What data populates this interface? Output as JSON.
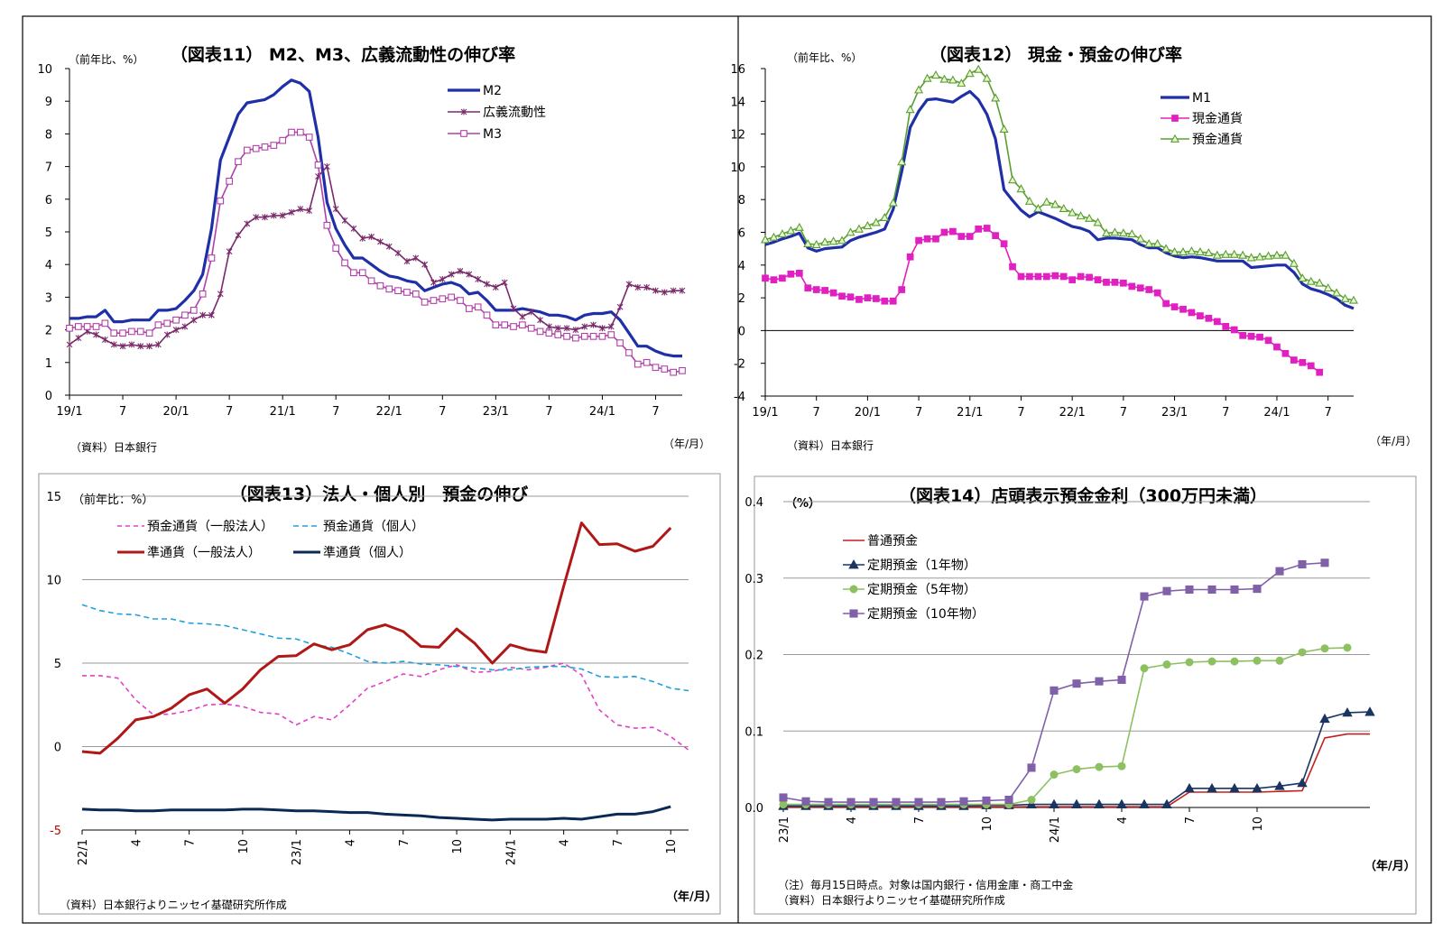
{
  "chart_data": [
    {
      "type": "line",
      "title": "（図表11） M2、M3、広義流動性の伸び率",
      "ylabel": "（前年比、%）",
      "xunit": "（年/月）",
      "source": "（資料）日本銀行",
      "ylim": [
        0,
        10
      ],
      "yticks": [
        0,
        1,
        2,
        3,
        4,
        5,
        6,
        7,
        8,
        9,
        10
      ],
      "xticklabels": [
        "19/1",
        "7",
        "20/1",
        "7",
        "21/1",
        "7",
        "22/1",
        "7",
        "23/1",
        "7",
        "24/1",
        "7"
      ],
      "legend_position": "top-right",
      "grid": false,
      "series": [
        {
          "name": "M2",
          "color": "#1f2fa8",
          "marker": "none",
          "values": [
            2.35,
            2.35,
            2.4,
            2.4,
            2.6,
            2.25,
            2.25,
            2.3,
            2.3,
            2.3,
            2.6,
            2.6,
            2.65,
            2.9,
            3.2,
            3.7,
            5.1,
            7.2,
            7.9,
            8.6,
            8.95,
            9.0,
            9.05,
            9.2,
            9.45,
            9.65,
            9.55,
            9.3,
            7.9,
            5.9,
            5.1,
            4.6,
            4.2,
            4.2,
            4.0,
            3.8,
            3.65,
            3.6,
            3.5,
            3.45,
            3.2,
            3.3,
            3.4,
            3.45,
            3.35,
            3.1,
            3.15,
            2.9,
            2.6,
            2.6,
            2.6,
            2.65,
            2.6,
            2.55,
            2.45,
            2.45,
            2.4,
            2.3,
            2.45,
            2.5,
            2.5,
            2.55,
            2.3,
            1.9,
            1.5,
            1.5,
            1.35,
            1.25,
            1.2,
            1.2
          ]
        },
        {
          "name": "広義流動性",
          "color": "#7a2a6a",
          "marker": "x",
          "values": [
            1.55,
            1.75,
            1.95,
            1.85,
            1.7,
            1.55,
            1.5,
            1.55,
            1.5,
            1.5,
            1.55,
            1.85,
            2.0,
            2.1,
            2.3,
            2.45,
            2.45,
            3.1,
            4.4,
            4.9,
            5.25,
            5.45,
            5.45,
            5.5,
            5.5,
            5.6,
            5.7,
            5.65,
            6.7,
            7.0,
            5.7,
            5.35,
            5.1,
            4.8,
            4.85,
            4.7,
            4.55,
            4.35,
            4.1,
            4.2,
            4.0,
            3.45,
            3.55,
            3.7,
            3.8,
            3.7,
            3.55,
            3.4,
            3.3,
            3.45,
            2.65,
            2.4,
            2.55,
            2.3,
            2.1,
            2.05,
            2.05,
            2.0,
            2.1,
            2.15,
            2.05,
            2.1,
            2.7,
            3.4,
            3.3,
            3.3,
            3.2,
            3.15,
            3.2,
            3.2
          ]
        },
        {
          "name": "M3",
          "color": "#b040a8",
          "marker": "square",
          "values": [
            2.05,
            2.1,
            2.1,
            2.1,
            2.2,
            1.9,
            1.9,
            1.95,
            1.95,
            1.9,
            2.15,
            2.2,
            2.3,
            2.45,
            2.6,
            3.1,
            4.2,
            5.95,
            6.55,
            7.15,
            7.5,
            7.55,
            7.6,
            7.65,
            7.8,
            8.05,
            8.05,
            7.9,
            7.05,
            5.2,
            4.5,
            4.05,
            3.75,
            3.75,
            3.5,
            3.35,
            3.25,
            3.2,
            3.15,
            3.1,
            2.85,
            2.9,
            2.95,
            3.0,
            2.9,
            2.65,
            2.7,
            2.45,
            2.15,
            2.15,
            2.1,
            2.15,
            2.05,
            1.95,
            1.9,
            1.85,
            1.8,
            1.75,
            1.8,
            1.8,
            1.8,
            1.85,
            1.6,
            1.3,
            0.95,
            1.0,
            0.85,
            0.8,
            0.7,
            0.75
          ]
        }
      ]
    },
    {
      "type": "line",
      "title": "（図表12） 現金・預金の伸び率",
      "ylabel": "（前年比、%）",
      "xunit": "（年/月）",
      "source": "（資料）日本銀行",
      "ylim": [
        -4,
        16
      ],
      "yticks": [
        -4,
        -2,
        0,
        2,
        4,
        6,
        8,
        10,
        12,
        14,
        16
      ],
      "xticklabels": [
        "19/1",
        "7",
        "20/1",
        "7",
        "21/1",
        "7",
        "22/1",
        "7",
        "23/1",
        "7",
        "24/1",
        "7"
      ],
      "legend_position": "top-right",
      "grid": false,
      "series": [
        {
          "name": "M1",
          "color": "#1f2fa8",
          "marker": "none",
          "values": [
            5.25,
            5.4,
            5.6,
            5.75,
            5.95,
            5.05,
            4.85,
            5.0,
            5.05,
            5.1,
            5.5,
            5.7,
            5.85,
            6.0,
            6.2,
            7.4,
            9.7,
            12.4,
            13.4,
            14.1,
            14.15,
            14.05,
            13.95,
            14.3,
            14.6,
            14.1,
            13.2,
            11.7,
            8.6,
            7.95,
            7.35,
            6.95,
            7.25,
            7.05,
            6.85,
            6.6,
            6.35,
            6.25,
            6.05,
            5.55,
            5.65,
            5.65,
            5.6,
            5.55,
            5.25,
            5.05,
            5.05,
            4.75,
            4.55,
            4.45,
            4.5,
            4.45,
            4.35,
            4.25,
            4.25,
            4.25,
            4.25,
            3.85,
            3.9,
            3.95,
            4.0,
            4.0,
            3.55,
            2.85,
            2.55,
            2.4,
            2.2,
            1.95,
            1.55,
            1.35
          ]
        },
        {
          "name": "現金通貨",
          "color": "#e020c0",
          "marker": "square",
          "values": [
            3.2,
            3.1,
            3.2,
            3.45,
            3.5,
            2.6,
            2.5,
            2.45,
            2.3,
            2.1,
            2.05,
            1.9,
            2.0,
            1.95,
            1.8,
            1.8,
            2.5,
            4.5,
            5.5,
            5.6,
            5.6,
            6.0,
            6.05,
            5.75,
            5.75,
            6.2,
            6.25,
            5.8,
            5.3,
            3.9,
            3.3,
            3.3,
            3.3,
            3.3,
            3.35,
            3.3,
            3.1,
            3.3,
            3.25,
            3.1,
            2.95,
            2.95,
            2.9,
            2.7,
            2.6,
            2.5,
            2.3,
            1.65,
            1.45,
            1.3,
            1.1,
            0.9,
            0.75,
            0.55,
            0.25,
            0.05,
            -0.3,
            -0.35,
            -0.4,
            -0.6,
            -1.0,
            -1.4,
            -1.8,
            -1.95,
            -2.15,
            -2.55
          ]
        },
        {
          "name": "預金通貨",
          "color": "#5a9e32",
          "marker": "triangle",
          "values": [
            5.55,
            5.7,
            5.9,
            6.1,
            6.3,
            5.3,
            5.25,
            5.4,
            5.45,
            5.5,
            6.0,
            6.2,
            6.4,
            6.6,
            6.9,
            7.8,
            10.3,
            13.5,
            14.7,
            15.4,
            15.6,
            15.35,
            15.3,
            15.1,
            15.7,
            15.95,
            15.4,
            14.2,
            12.3,
            9.2,
            8.65,
            7.9,
            7.45,
            7.85,
            7.7,
            7.45,
            7.2,
            7.0,
            6.85,
            6.6,
            5.95,
            6.0,
            5.95,
            5.9,
            5.6,
            5.3,
            5.3,
            5.0,
            4.8,
            4.8,
            4.85,
            4.8,
            4.75,
            4.6,
            4.65,
            4.65,
            4.6,
            4.45,
            4.5,
            4.55,
            4.6,
            4.6,
            4.1,
            3.2,
            3.0,
            2.9,
            2.6,
            2.3,
            1.95,
            1.85
          ]
        }
      ]
    },
    {
      "type": "line",
      "title": "（図表13）法人・個人別　預金の伸び",
      "ylabel": "（前年比：%）",
      "xunit": "（年/月）",
      "source": "（資料）日本銀行よりニッセイ基礎研究所作成",
      "ylim": [
        -5,
        15
      ],
      "yticks": [
        -5,
        0,
        5,
        10,
        15
      ],
      "xticklabels": [
        "22/1",
        "4",
        "7",
        "10",
        "23/1",
        "4",
        "7",
        "10",
        "24/1",
        "4",
        "7",
        "10"
      ],
      "legend_position": "top-left",
      "grid": true,
      "series": [
        {
          "name": "預金通貨（一般法人）",
          "color": "#e040c8",
          "dash": "5,4",
          "values": [
            4.25,
            4.25,
            4.1,
            2.8,
            1.9,
            1.95,
            2.15,
            2.5,
            2.55,
            2.4,
            2.05,
            1.95,
            1.3,
            1.8,
            1.6,
            2.5,
            3.5,
            3.9,
            4.35,
            4.2,
            4.6,
            4.9,
            4.45,
            4.5,
            4.75,
            4.6,
            4.75,
            5.0,
            4.3,
            2.2,
            1.3,
            1.1,
            1.15,
            0.6,
            -0.2
          ]
        },
        {
          "name": "預金通貨（個人）",
          "color": "#20a0d8",
          "dash": "6,4",
          "values": [
            8.5,
            8.15,
            7.95,
            7.9,
            7.65,
            7.65,
            7.4,
            7.35,
            7.25,
            7.0,
            6.75,
            6.5,
            6.45,
            6.1,
            5.95,
            5.55,
            5.1,
            5.0,
            5.1,
            4.95,
            4.9,
            4.8,
            4.7,
            4.6,
            4.6,
            4.75,
            4.8,
            4.8,
            4.65,
            4.2,
            4.15,
            4.2,
            3.9,
            3.5,
            3.35
          ]
        },
        {
          "name": "準通貨（一般法人）",
          "color": "#b01818",
          "dash": "",
          "values": [
            -0.3,
            -0.4,
            0.5,
            1.6,
            1.8,
            2.3,
            3.1,
            3.45,
            2.6,
            3.45,
            4.6,
            5.4,
            5.45,
            6.15,
            5.8,
            6.1,
            7.0,
            7.3,
            6.9,
            6.0,
            5.95,
            7.05,
            6.2,
            5.0,
            6.1,
            5.8,
            5.65,
            9.6,
            13.4,
            12.1,
            12.15,
            11.7,
            12.0,
            13.1
          ]
        },
        {
          "name": "準通貨（個人）",
          "color": "#0a2a55",
          "dash": "",
          "values": [
            -3.75,
            -3.8,
            -3.8,
            -3.85,
            -3.85,
            -3.8,
            -3.8,
            -3.8,
            -3.8,
            -3.75,
            -3.75,
            -3.8,
            -3.85,
            -3.85,
            -3.9,
            -3.95,
            -3.95,
            -4.05,
            -4.1,
            -4.15,
            -4.25,
            -4.3,
            -4.35,
            -4.4,
            -4.35,
            -4.35,
            -4.35,
            -4.3,
            -4.35,
            -4.2,
            -4.05,
            -4.05,
            -3.9,
            -3.6
          ]
        }
      ]
    },
    {
      "type": "line",
      "title": "（図表14）店頭表示預金金利（300万円未満）",
      "ylabel": "（%）",
      "xunit": "（年/月）",
      "note": "（注）毎月15日時点。対象は国内銀行・信用金庫・商工中金",
      "source": "（資料）日本銀行よりニッセイ基礎研究所作成",
      "ylim": [
        0,
        0.4
      ],
      "yticks": [
        0.0,
        0.1,
        0.2,
        0.3,
        0.4
      ],
      "ytick_labels": [
        "0.0",
        "0.1",
        "0.2",
        "0.3",
        "0.4"
      ],
      "xticklabels": [
        "23/1",
        "4",
        "7",
        "10",
        "24/1",
        "4",
        "7",
        "10"
      ],
      "legend_position": "top-left",
      "grid": true,
      "series": [
        {
          "name": "普通預金",
          "color": "#c02020",
          "marker": "none",
          "values": [
            0.001,
            0.001,
            0.001,
            0.001,
            0.001,
            0.001,
            0.001,
            0.001,
            0.001,
            0.001,
            0.001,
            0.001,
            0.001,
            0.001,
            0.001,
            0.001,
            0.001,
            0.001,
            0.02,
            0.02,
            0.02,
            0.02,
            0.021,
            0.022,
            0.091,
            0.096,
            0.096
          ]
        },
        {
          "name": "定期預金（1年物）",
          "color": "#1a3560",
          "marker": "triangle",
          "values": [
            0.002,
            0.002,
            0.002,
            0.002,
            0.002,
            0.002,
            0.002,
            0.002,
            0.002,
            0.003,
            0.003,
            0.004,
            0.004,
            0.004,
            0.004,
            0.004,
            0.004,
            0.004,
            0.025,
            0.025,
            0.025,
            0.025,
            0.028,
            0.032,
            0.116,
            0.124,
            0.125
          ]
        },
        {
          "name": "定期預金（5年物）",
          "color": "#8dc060",
          "marker": "circle",
          "values": [
            0.004,
            0.004,
            0.004,
            0.004,
            0.004,
            0.004,
            0.004,
            0.004,
            0.004,
            0.004,
            0.004,
            0.01,
            0.043,
            0.05,
            0.053,
            0.054,
            0.182,
            0.187,
            0.19,
            0.191,
            0.191,
            0.192,
            0.192,
            0.203,
            0.208,
            0.209
          ]
        },
        {
          "name": "定期預金（10年物）",
          "color": "#8060a8",
          "marker": "square",
          "values": [
            0.013,
            0.008,
            0.007,
            0.007,
            0.007,
            0.007,
            0.007,
            0.007,
            0.008,
            0.009,
            0.01,
            0.052,
            0.153,
            0.162,
            0.165,
            0.167,
            0.276,
            0.283,
            0.285,
            0.285,
            0.285,
            0.286,
            0.309,
            0.318,
            0.32
          ]
        }
      ]
    }
  ]
}
